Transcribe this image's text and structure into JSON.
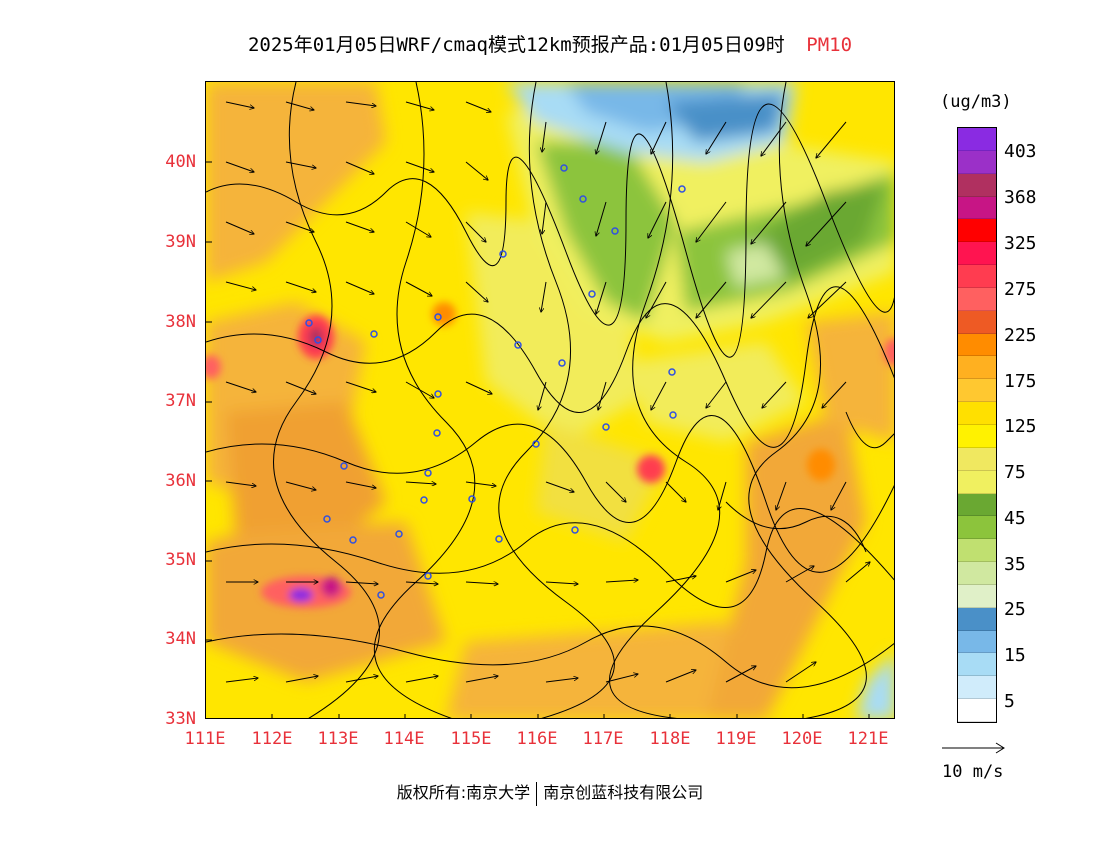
{
  "title": {
    "main": "2025年01月05日WRF/cmaq模式12km预报产品:01月05日09时",
    "variable": "PM10"
  },
  "map": {
    "lat_labels": [
      "40N",
      "39N",
      "38N",
      "37N",
      "36N",
      "35N",
      "34N",
      "33N"
    ],
    "lon_labels": [
      "111E",
      "112E",
      "113E",
      "114E",
      "115E",
      "116E",
      "117E",
      "118E",
      "119E",
      "120E",
      "121E"
    ],
    "extent": {
      "lon_min": 111.0,
      "lon_max": 121.4,
      "lat_min": 33.0,
      "lat_max": 40.9
    }
  },
  "legend": {
    "unit": "(ug/m3)",
    "labels": [
      "403",
      "368",
      "325",
      "275",
      "225",
      "175",
      "125",
      "75",
      "45",
      "35",
      "25",
      "15",
      "5"
    ],
    "colors": [
      "#8a2be2",
      "#9b30c8",
      "#b03060",
      "#c71585",
      "#ff0000",
      "#ff1450",
      "#ff3c50",
      "#ff6060",
      "#ee5a24",
      "#ff8c00",
      "#ffb020",
      "#ffc830",
      "#ffe000",
      "#fff200",
      "#f0e860",
      "#f0f060",
      "#6aa832",
      "#8cc43c",
      "#c0e070",
      "#d0e8a0",
      "#e0f0c8",
      "#4a90c8",
      "#78b8e8",
      "#a8dcf5",
      "#d0ecfb",
      "#ffffff"
    ],
    "vector_label": "10 m/s"
  },
  "footer": {
    "left": "版权所有:南京大学",
    "right": "南京创蓝科技有限公司"
  }
}
